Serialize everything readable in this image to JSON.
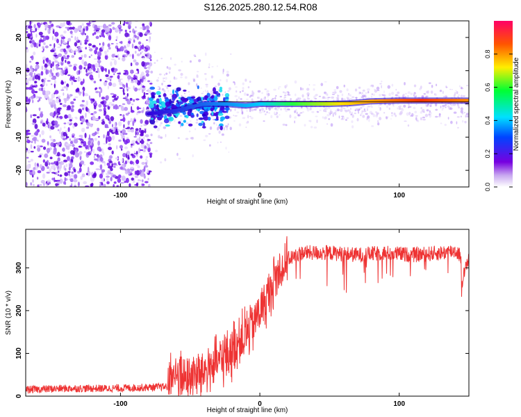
{
  "title": "S126.2025.280.12.54.R08",
  "colors": {
    "snr_line": "#ee3333",
    "ridge": "#000000"
  },
  "chart_data": [
    {
      "type": "heatmap",
      "name": "spectrogram",
      "xlabel": "Height of straight line (km)",
      "ylabel": "Frequency (Hz)",
      "xlim": [
        -168,
        150
      ],
      "ylim": [
        -25,
        25
      ],
      "xticks": [
        -100,
        0,
        100
      ],
      "yticks": [
        -20,
        -10,
        0,
        10,
        20
      ],
      "x_tick_labels": [
        "-100",
        "0",
        "100"
      ],
      "y_tick_labels": [
        "-20",
        "-10",
        "0",
        "10",
        "20"
      ],
      "signal_ridge": {
        "x": [
          -80,
          -60,
          -40,
          -25,
          -10,
          0,
          20,
          50,
          65,
          80,
          100,
          150
        ],
        "freq": [
          -3,
          -2,
          0,
          0,
          -0.5,
          0,
          0,
          0,
          0.2,
          0.8,
          1,
          1
        ]
      },
      "colorbar": {
        "label": "Normalized spectral amplitude",
        "range": [
          0,
          1
        ],
        "ticks": [
          0.0,
          0.2,
          0.4,
          0.6,
          0.8
        ],
        "tick_labels": [
          "0.0",
          "0.2",
          "0.4",
          "0.6",
          "0.8"
        ]
      }
    },
    {
      "type": "line",
      "name": "snr",
      "xlabel": "Height of straight line (km)",
      "ylabel": "SNR (10 * v/v)",
      "xlim": [
        -168,
        150
      ],
      "ylim": [
        0,
        390
      ],
      "xticks": [
        -100,
        0,
        100
      ],
      "yticks": [
        0,
        100,
        200,
        300
      ],
      "x_tick_labels": [
        "-100",
        "0",
        "100"
      ],
      "y_tick_labels": [
        "0",
        "100",
        "200",
        "300"
      ],
      "series": [
        {
          "name": "SNR",
          "x": [
            -168,
            -140,
            -110,
            -85,
            -66,
            -65,
            -55,
            -45,
            -35,
            -25,
            -15,
            -8,
            0,
            6,
            10,
            15,
            20,
            30,
            50,
            70,
            90,
            110,
            130,
            140,
            144,
            145,
            148,
            150
          ],
          "y": [
            15,
            18,
            18,
            20,
            22,
            55,
            40,
            50,
            70,
            90,
            130,
            150,
            200,
            230,
            270,
            300,
            320,
            335,
            335,
            330,
            335,
            330,
            335,
            340,
            330,
            270,
            300,
            330
          ]
        }
      ]
    }
  ]
}
